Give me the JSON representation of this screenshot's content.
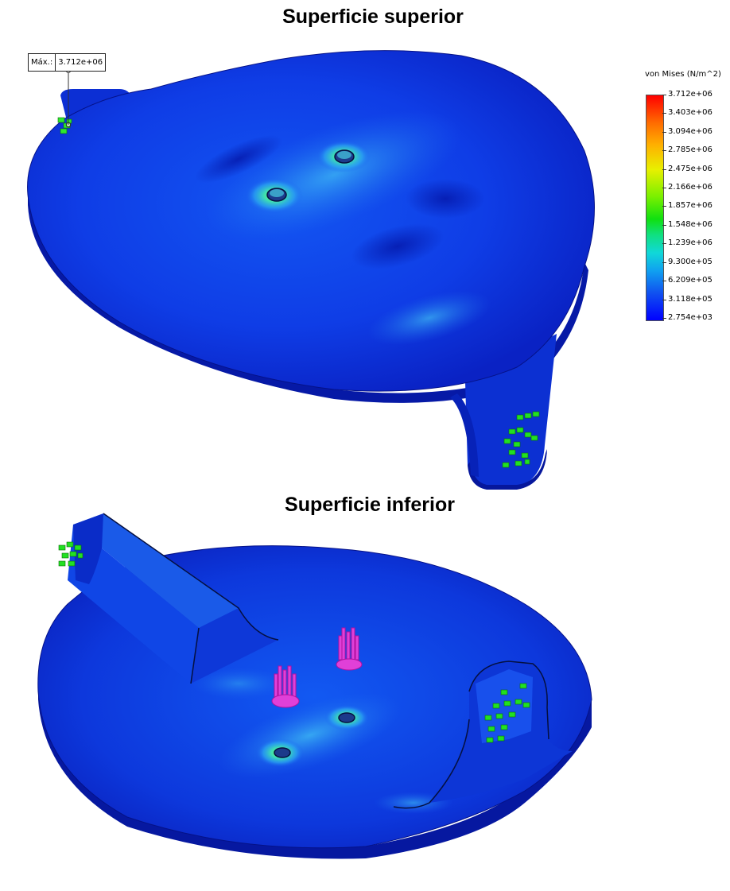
{
  "titles": {
    "top": "Superficie superior",
    "bottom": "Superficie inferior"
  },
  "max_probe": {
    "label": "Máx.:",
    "value": "3.712e+06"
  },
  "legend": {
    "title": "von Mises (N/m^2)",
    "ticks": [
      "3.712e+06",
      "3.403e+06",
      "3.094e+06",
      "2.785e+06",
      "2.475e+06",
      "2.166e+06",
      "1.857e+06",
      "1.548e+06",
      "1.239e+06",
      "9.300e+05",
      "6.209e+05",
      "3.118e+05",
      "2.754e+03"
    ]
  },
  "colors": {
    "plate_dark": "#0a23c8",
    "plate_mid": "#0f48f0",
    "edge": "#07189a",
    "stress_cyan": "#38d0f0",
    "stress_green": "#3ee83a",
    "fixture_green": "#20e020",
    "load_magenta": "#e030d0"
  }
}
